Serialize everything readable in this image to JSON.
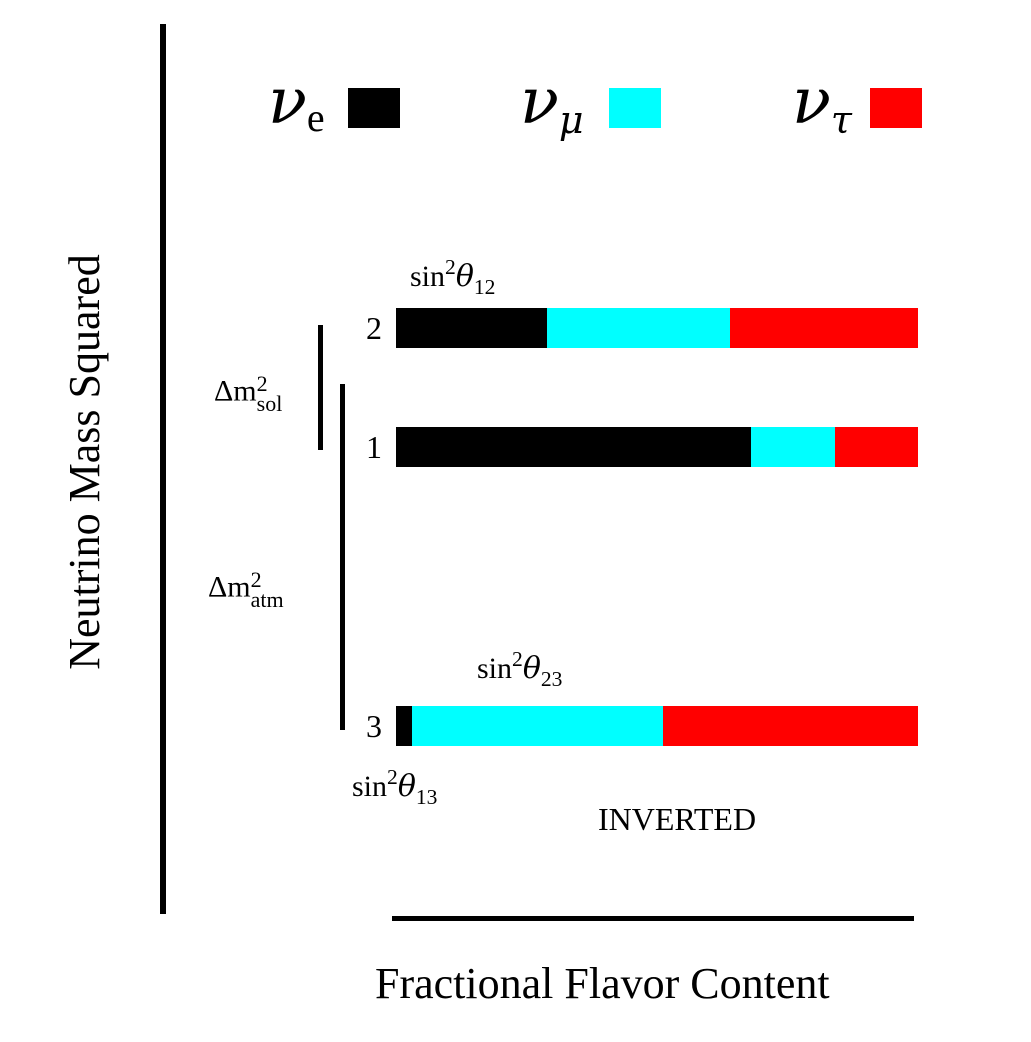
{
  "y_axis_label": "Neutrino Mass Squared",
  "x_axis_label": "Fractional Flavor Content",
  "ordering_label": "INVERTED",
  "legend": [
    {
      "symbol": "ν",
      "subscript": "e",
      "color": "#000000"
    },
    {
      "symbol": "ν",
      "subscript": "μ",
      "color": "#00ffff"
    },
    {
      "symbol": "ν",
      "subscript": "τ",
      "color": "#ff0000"
    }
  ],
  "mass_states": [
    {
      "label": "2",
      "fractions": {
        "e": 0.29,
        "mu": 0.35,
        "tau": 0.36
      }
    },
    {
      "label": "1",
      "fractions": {
        "e": 0.68,
        "mu": 0.16,
        "tau": 0.16
      }
    },
    {
      "label": "3",
      "fractions": {
        "e": 0.03,
        "mu": 0.48,
        "tau": 0.49
      }
    }
  ],
  "splittings": {
    "solar": {
      "prefix": "Δm",
      "sup": "2",
      "sub": "sol"
    },
    "atmospheric": {
      "prefix": "Δm",
      "sup": "2",
      "sub": "atm"
    }
  },
  "mixing_labels": {
    "theta12": {
      "func": "sin",
      "sup": "2",
      "theta": "θ",
      "sub": "12"
    },
    "theta23": {
      "func": "sin",
      "sup": "2",
      "theta": "θ",
      "sub": "23"
    },
    "theta13": {
      "func": "sin",
      "sup": "2",
      "theta": "θ",
      "sub": "13"
    }
  }
}
